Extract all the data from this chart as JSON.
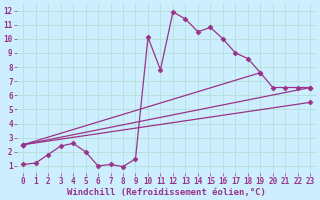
{
  "xlabel": "Windchill (Refroidissement éolien,°C)",
  "bg_color": "#cceeff",
  "line_color": "#993388",
  "marker": "D",
  "markersize": 2.5,
  "linewidth": 0.9,
  "xlim_min": -0.5,
  "xlim_max": 23.5,
  "ylim_min": 0.5,
  "ylim_max": 12.5,
  "xticks": [
    0,
    1,
    2,
    3,
    4,
    5,
    6,
    7,
    8,
    9,
    10,
    11,
    12,
    13,
    14,
    15,
    16,
    17,
    18,
    19,
    20,
    21,
    22,
    23
  ],
  "yticks": [
    1,
    2,
    3,
    4,
    5,
    6,
    7,
    8,
    9,
    10,
    11,
    12
  ],
  "grid_color": "#b0ddd0",
  "tick_fontsize": 5.5,
  "xlabel_fontsize": 6.5,
  "series_main_x": [
    0,
    1,
    2,
    3,
    4,
    5,
    6,
    7,
    8,
    9,
    10,
    11,
    12,
    13,
    14,
    15,
    16,
    17,
    18,
    19,
    20,
    21,
    22,
    23
  ],
  "series_main_y": [
    1.1,
    1.2,
    1.8,
    2.4,
    2.6,
    2.0,
    1.0,
    1.1,
    0.95,
    1.5,
    10.1,
    7.8,
    11.9,
    11.4,
    10.5,
    10.8,
    10.0,
    9.0,
    8.6,
    7.6,
    6.55,
    6.55,
    6.55,
    6.55
  ],
  "straight_lines": [
    {
      "x": [
        0,
        19
      ],
      "y": [
        2.5,
        7.6
      ]
    },
    {
      "x": [
        0,
        23
      ],
      "y": [
        2.5,
        6.55
      ]
    },
    {
      "x": [
        0,
        23
      ],
      "y": [
        2.5,
        5.5
      ]
    }
  ]
}
